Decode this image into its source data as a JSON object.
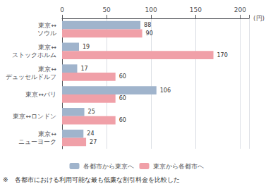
{
  "chart_data": {
    "type": "bar",
    "orientation": "horizontal",
    "categories": [
      "東京↔\nニューヨーク",
      "東京↔ロンドン",
      "東京↔パリ",
      "東京↔\nデュッセルドルフ",
      "東京↔\nストックホルム",
      "東京↔\nソウル"
    ],
    "series": [
      {
        "name": "各都市から東京へ",
        "color": "#a0b4cc",
        "values": [
          24,
          25,
          106,
          17,
          19,
          88
        ]
      },
      {
        "name": "東京から各都市へ",
        "color": "#f0a0a8",
        "values": [
          27,
          60,
          60,
          60,
          170,
          90
        ]
      }
    ],
    "xlim": [
      0,
      210
    ],
    "xticks": [
      0,
      50,
      100,
      150,
      200
    ],
    "xlabel": "(円)",
    "grid": true,
    "legend": "bottom",
    "data_labels": true,
    "annotations": [
      "※　各都市における利用可能な最も低廉な割引料金を比較した"
    ]
  }
}
